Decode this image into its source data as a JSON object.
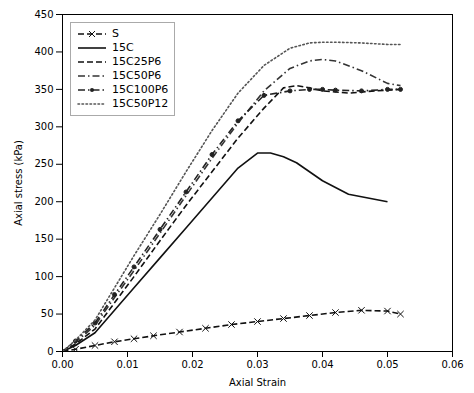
{
  "chart_data": {
    "type": "line",
    "xlabel": "Axial Strain",
    "ylabel": "Axial stress (kPa)",
    "xlim": [
      0,
      0.06
    ],
    "ylim": [
      0,
      450
    ],
    "xticks": [
      {
        "value": 0,
        "label": "0.00"
      },
      {
        "value": 0.01,
        "label": "0.01"
      },
      {
        "value": 0.02,
        "label": "0.02"
      },
      {
        "value": 0.03,
        "label": "0.03"
      },
      {
        "value": 0.04,
        "label": "0.04"
      },
      {
        "value": 0.05,
        "label": "0.05"
      },
      {
        "value": 0.06,
        "label": "0.06"
      }
    ],
    "yticks": [
      0,
      50,
      100,
      150,
      200,
      250,
      300,
      350,
      400,
      450
    ],
    "grid": false,
    "legend": "upper left",
    "series": [
      {
        "name": "S",
        "color": "#111111",
        "line_style": "dashed",
        "marker": "x",
        "x": [
          0,
          0.002,
          0.005,
          0.008,
          0.011,
          0.014,
          0.018,
          0.022,
          0.026,
          0.03,
          0.034,
          0.038,
          0.042,
          0.046,
          0.05,
          0.052
        ],
        "values": [
          0,
          3,
          8,
          13,
          17,
          21,
          26,
          31,
          36,
          40,
          44,
          48,
          52,
          55,
          54,
          50
        ]
      },
      {
        "name": "15C",
        "color": "#111111",
        "line_style": "solid",
        "x": [
          0,
          0.002,
          0.005,
          0.008,
          0.011,
          0.015,
          0.019,
          0.023,
          0.027,
          0.03,
          0.032,
          0.034,
          0.036,
          0.038,
          0.04,
          0.044,
          0.05
        ],
        "values": [
          0,
          8,
          25,
          55,
          85,
          125,
          165,
          205,
          245,
          265,
          265,
          260,
          252,
          240,
          228,
          210,
          200
        ]
      },
      {
        "name": "15C25P6",
        "color": "#111111",
        "line_style": "dashed",
        "x": [
          0,
          0.002,
          0.005,
          0.008,
          0.011,
          0.015,
          0.019,
          0.023,
          0.027,
          0.031,
          0.034,
          0.036,
          0.038,
          0.04,
          0.044,
          0.048,
          0.052
        ],
        "values": [
          0,
          10,
          30,
          65,
          100,
          148,
          195,
          240,
          285,
          325,
          352,
          355,
          352,
          348,
          345,
          348,
          350
        ]
      },
      {
        "name": "15C50P6",
        "color": "#333333",
        "line_style": "dashdot",
        "x": [
          0,
          0.002,
          0.005,
          0.008,
          0.011,
          0.015,
          0.019,
          0.023,
          0.027,
          0.031,
          0.035,
          0.038,
          0.04,
          0.042,
          0.046,
          0.05,
          0.052
        ],
        "values": [
          0,
          12,
          35,
          72,
          108,
          158,
          208,
          258,
          305,
          348,
          378,
          388,
          390,
          388,
          375,
          358,
          355
        ]
      },
      {
        "name": "15C100P6",
        "color": "#222222",
        "line_style": "dashdot",
        "marker": "point",
        "x": [
          0,
          0.002,
          0.005,
          0.008,
          0.011,
          0.015,
          0.019,
          0.023,
          0.027,
          0.031,
          0.035,
          0.038,
          0.04,
          0.042,
          0.046,
          0.05,
          0.052
        ],
        "values": [
          0,
          14,
          38,
          76,
          113,
          163,
          213,
          263,
          308,
          342,
          348,
          350,
          350,
          349,
          348,
          350,
          350
        ]
      },
      {
        "name": "15C50P12",
        "color": "#555555",
        "line_style": "dotted",
        "x": [
          0,
          0.002,
          0.005,
          0.008,
          0.011,
          0.015,
          0.019,
          0.023,
          0.027,
          0.031,
          0.035,
          0.038,
          0.04,
          0.042,
          0.046,
          0.05,
          0.052
        ],
        "values": [
          0,
          15,
          42,
          85,
          128,
          183,
          240,
          295,
          345,
          382,
          405,
          412,
          413,
          413,
          412,
          410,
          410
        ]
      }
    ]
  }
}
